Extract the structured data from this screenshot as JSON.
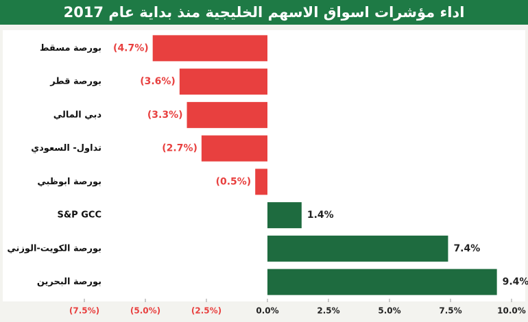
{
  "chart_data": {
    "type": "hbar",
    "title": "اداء مؤشرات اسواق الاسهم الخليجية منذ بداية عام 2017",
    "categories": [
      "بورصة مسقط",
      "بورصة قطر",
      "دبي المالي",
      "تداول- السعودي",
      "بورصة ابوظبي",
      "S&P GCC",
      "بورصة الكويت-الوزني",
      "بورصة البحرين"
    ],
    "values": [
      -4.7,
      -3.6,
      -3.3,
      -2.7,
      -0.5,
      1.4,
      7.4,
      9.4
    ],
    "value_labels": [
      "(4.7%)",
      "(3.6%)",
      "(3.3%)",
      "(2.7%)",
      "(0.5%)",
      "1.4%",
      "7.4%",
      "9.4%"
    ],
    "negative_color": "#e8403f",
    "positive_color": "#1e6b3f",
    "xlim": [
      -7.5,
      10
    ],
    "xticks": [
      {
        "value": -7.5,
        "label": "(7.5%)"
      },
      {
        "value": -5,
        "label": "(5.0%)"
      },
      {
        "value": -2.5,
        "label": "(2.5%)"
      },
      {
        "value": 0,
        "label": "0.0%"
      },
      {
        "value": 2.5,
        "label": "2.5%"
      },
      {
        "value": 5,
        "label": "5.0%"
      },
      {
        "value": 7.5,
        "label": "7.5%"
      },
      {
        "value": 10,
        "label": "10.0%"
      }
    ]
  }
}
